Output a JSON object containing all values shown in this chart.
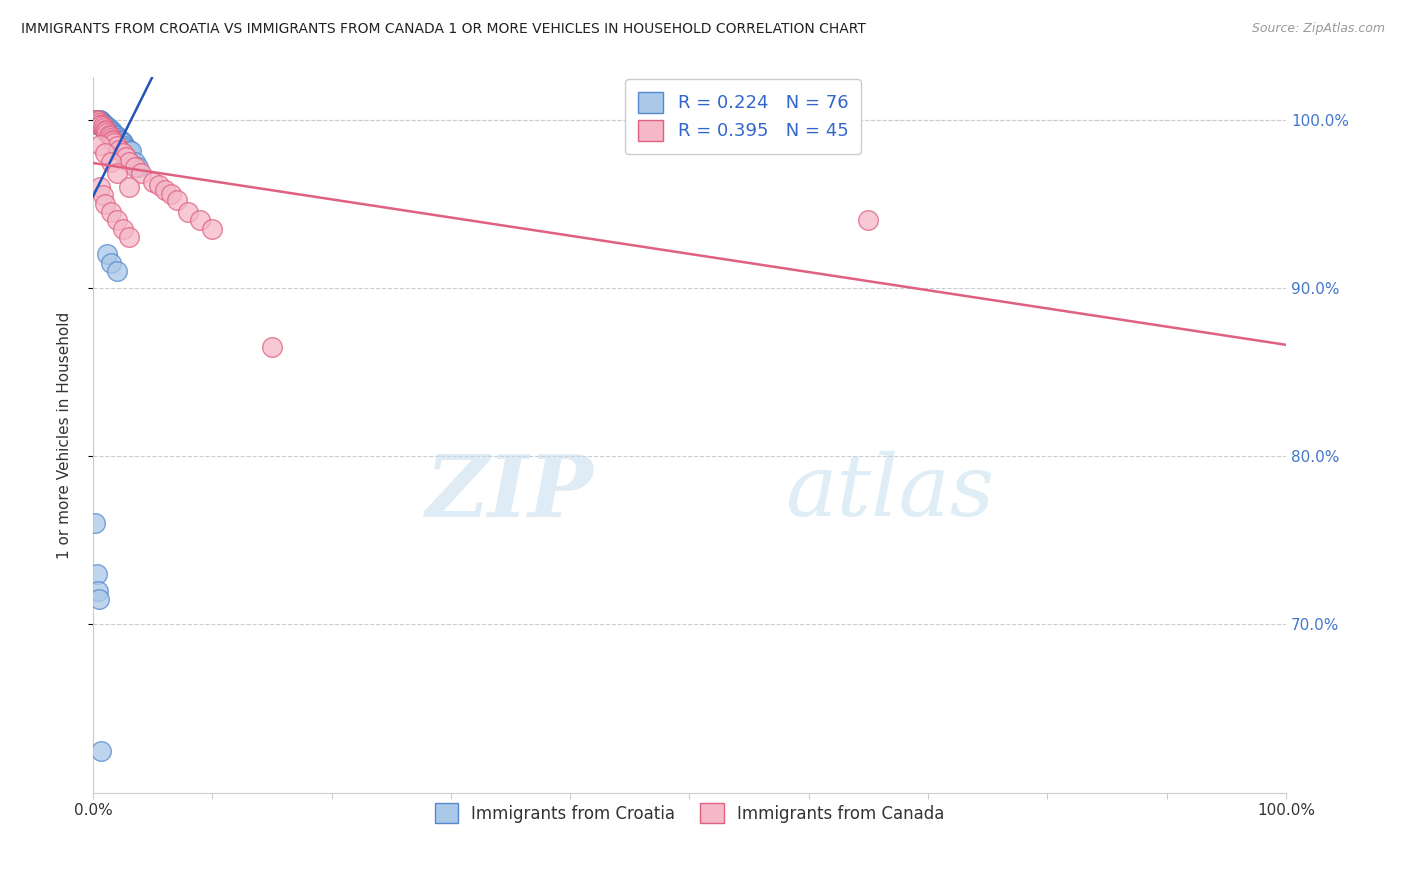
{
  "title": "IMMIGRANTS FROM CROATIA VS IMMIGRANTS FROM CANADA 1 OR MORE VEHICLES IN HOUSEHOLD CORRELATION CHART",
  "source": "Source: ZipAtlas.com",
  "ylabel": "1 or more Vehicles in Household",
  "xlim": [
    0.0,
    1.0
  ],
  "ylim": [
    0.6,
    1.025
  ],
  "yticks": [
    0.7,
    0.8,
    0.9,
    1.0
  ],
  "ytick_labels": [
    "70.0%",
    "80.0%",
    "90.0%",
    "100.0%"
  ],
  "grid_color": "#cccccc",
  "background_color": "#ffffff",
  "croatia_color": "#aac8e8",
  "canada_color": "#f4b8c8",
  "croatia_edge_color": "#5588cc",
  "canada_edge_color": "#e06080",
  "croatia_line_color": "#2255bb",
  "canada_line_color": "#e06080",
  "R_croatia": 0.224,
  "N_croatia": 76,
  "R_canada": 0.395,
  "N_canada": 45,
  "legend_label_croatia": "Immigrants from Croatia",
  "legend_label_canada": "Immigrants from Canada",
  "watermark_zip": "ZIP",
  "watermark_atlas": "atlas",
  "croatia_x": [
    0.002,
    0.003,
    0.003,
    0.004,
    0.004,
    0.004,
    0.004,
    0.004,
    0.005,
    0.005,
    0.005,
    0.005,
    0.005,
    0.006,
    0.006,
    0.006,
    0.006,
    0.007,
    0.007,
    0.007,
    0.007,
    0.007,
    0.008,
    0.008,
    0.008,
    0.008,
    0.009,
    0.009,
    0.009,
    0.009,
    0.01,
    0.01,
    0.01,
    0.01,
    0.011,
    0.011,
    0.011,
    0.012,
    0.012,
    0.012,
    0.013,
    0.013,
    0.013,
    0.014,
    0.014,
    0.015,
    0.015,
    0.015,
    0.016,
    0.016,
    0.017,
    0.017,
    0.018,
    0.018,
    0.019,
    0.02,
    0.02,
    0.021,
    0.022,
    0.023,
    0.024,
    0.025,
    0.027,
    0.028,
    0.03,
    0.032,
    0.035,
    0.038,
    0.012,
    0.015,
    0.02,
    0.002,
    0.003,
    0.004,
    0.005,
    0.007
  ],
  "croatia_y": [
    1.0,
    1.0,
    0.999,
    1.0,
    0.999,
    0.999,
    0.998,
    0.998,
    1.0,
    0.999,
    0.999,
    0.998,
    0.997,
    1.0,
    0.999,
    0.998,
    0.997,
    0.999,
    0.998,
    0.998,
    0.997,
    0.996,
    0.998,
    0.997,
    0.997,
    0.996,
    0.997,
    0.997,
    0.996,
    0.995,
    0.997,
    0.996,
    0.995,
    0.994,
    0.996,
    0.995,
    0.994,
    0.995,
    0.994,
    0.993,
    0.995,
    0.994,
    0.993,
    0.994,
    0.993,
    0.993,
    0.992,
    0.991,
    0.993,
    0.992,
    0.992,
    0.991,
    0.991,
    0.99,
    0.99,
    0.99,
    0.989,
    0.989,
    0.988,
    0.987,
    0.987,
    0.986,
    0.984,
    0.983,
    0.982,
    0.981,
    0.975,
    0.972,
    0.92,
    0.915,
    0.91,
    0.76,
    0.73,
    0.72,
    0.715,
    0.625
  ],
  "canada_x": [
    0.003,
    0.004,
    0.005,
    0.006,
    0.007,
    0.008,
    0.009,
    0.01,
    0.011,
    0.012,
    0.013,
    0.014,
    0.015,
    0.016,
    0.017,
    0.018,
    0.02,
    0.022,
    0.025,
    0.028,
    0.03,
    0.035,
    0.04,
    0.05,
    0.055,
    0.06,
    0.065,
    0.07,
    0.08,
    0.09,
    0.1,
    0.006,
    0.008,
    0.01,
    0.015,
    0.02,
    0.025,
    0.03,
    0.006,
    0.01,
    0.015,
    0.02,
    0.03,
    0.65,
    0.15
  ],
  "canada_y": [
    1.0,
    0.999,
    0.998,
    0.997,
    0.997,
    0.996,
    0.995,
    0.994,
    0.993,
    0.992,
    0.991,
    0.99,
    0.989,
    0.988,
    0.987,
    0.986,
    0.984,
    0.982,
    0.98,
    0.978,
    0.975,
    0.972,
    0.968,
    0.963,
    0.961,
    0.958,
    0.956,
    0.952,
    0.945,
    0.94,
    0.935,
    0.96,
    0.955,
    0.95,
    0.945,
    0.94,
    0.935,
    0.93,
    0.985,
    0.98,
    0.975,
    0.968,
    0.96,
    0.94,
    0.865
  ]
}
